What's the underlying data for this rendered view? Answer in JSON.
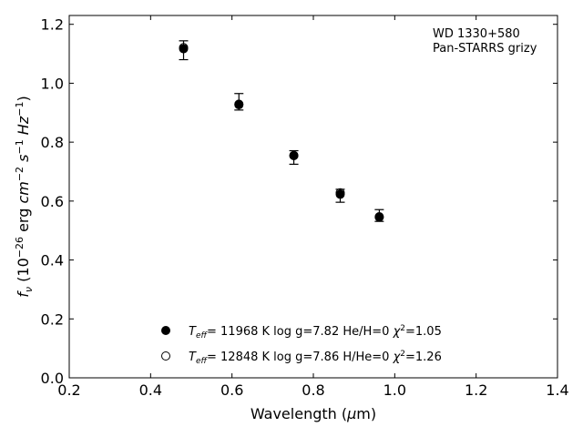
{
  "chart_data": {
    "type": "scatter",
    "title": "",
    "annotation": [
      "WD 1330+580",
      "Pan-STARRS grizy"
    ],
    "xlabel": "Wavelength (μm)",
    "ylabel": "f_ν (10^-26 erg cm^-2 s^-1 Hz^-1)",
    "xlim": [
      0.2,
      1.4
    ],
    "ylim": [
      0.0,
      1.23
    ],
    "xticks": [
      "0.2",
      "0.4",
      "0.6",
      "0.8",
      "1.0",
      "1.2",
      "1.4"
    ],
    "yticks": [
      "0.0",
      "0.2",
      "0.4",
      "0.6",
      "0.8",
      "1.0",
      "1.2"
    ],
    "grid": false,
    "legend_position": "lower-left",
    "observed": {
      "x": [
        0.481,
        0.617,
        0.752,
        0.866,
        0.962
      ],
      "y": [
        1.112,
        0.937,
        0.748,
        0.618,
        0.551
      ],
      "yerr": [
        0.032,
        0.028,
        0.023,
        0.022,
        0.02
      ]
    },
    "series": [
      {
        "name": "T_eff= 11968 K  log g=7.82  He/H=0  χ²=1.05",
        "marker": "filled-circle",
        "x": [
          0.481,
          0.617,
          0.752,
          0.866,
          0.962
        ],
        "y": [
          1.117,
          0.927,
          0.755,
          0.623,
          0.545
        ]
      },
      {
        "name": "T_eff= 12848 K  log g=7.86  H/He=0  χ²=1.26",
        "marker": "open-circle",
        "x": [
          0.481,
          0.617,
          0.752,
          0.866,
          0.962
        ],
        "y": [
          1.121,
          0.929,
          0.754,
          0.628,
          0.547
        ]
      }
    ]
  }
}
